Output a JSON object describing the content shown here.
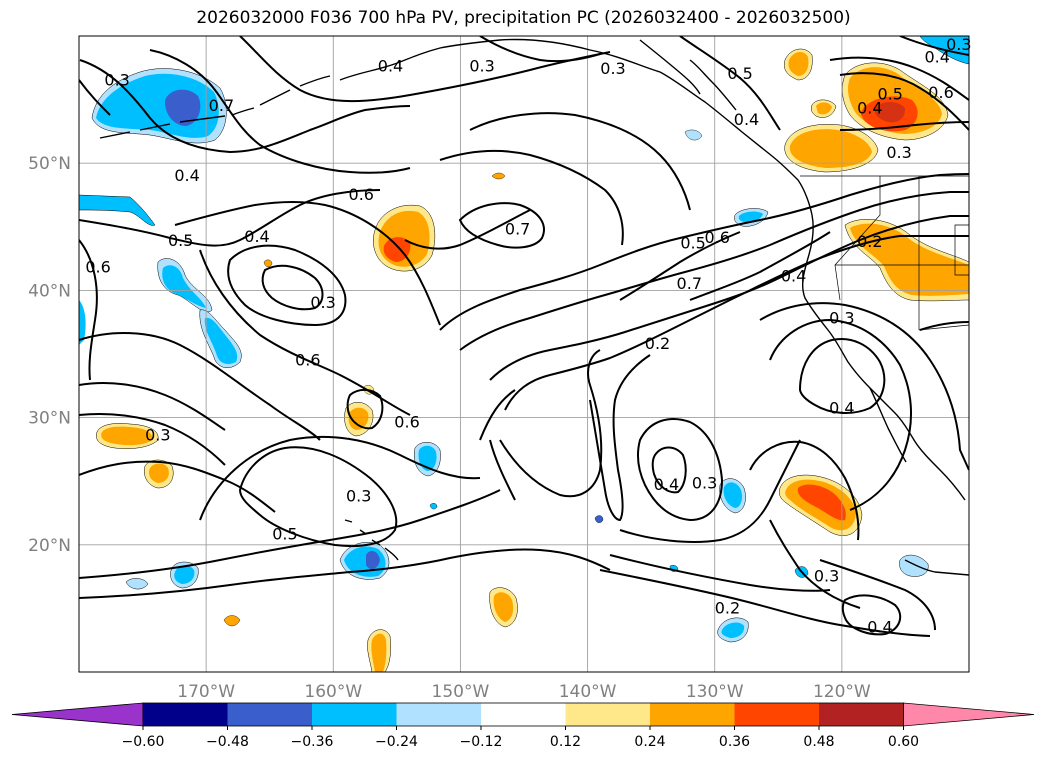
{
  "title": "2026032000 F036 700 hPa PV, precipitation PC (2026032400 - 2026032500)",
  "map": {
    "lat_labels": [
      "50°N",
      "40°N",
      "30°N",
      "20°N"
    ],
    "lon_labels": [
      "170°W",
      "160°W",
      "150°W",
      "140°W",
      "130°W",
      "120°W"
    ],
    "extent": {
      "lon_min": -180,
      "lon_max": -110,
      "lat_min": 10,
      "lat_max": 60
    },
    "contour_labels": [
      {
        "text": "0.3",
        "lon": -177.0,
        "lat": 56.5
      },
      {
        "text": "0.4",
        "lon": -171.5,
        "lat": 49.0
      },
      {
        "text": "0.7",
        "lon": -168.8,
        "lat": 54.5
      },
      {
        "text": "0.4",
        "lon": -155.5,
        "lat": 57.6
      },
      {
        "text": "0.3",
        "lon": -148.3,
        "lat": 57.6
      },
      {
        "text": "0.3",
        "lon": -138.0,
        "lat": 57.4
      },
      {
        "text": "0.5",
        "lon": -128.0,
        "lat": 57.0
      },
      {
        "text": "0.4",
        "lon": -127.5,
        "lat": 53.4
      },
      {
        "text": "0.4",
        "lon": -112.5,
        "lat": 58.3
      },
      {
        "text": "0.3",
        "lon": -110.8,
        "lat": 59.3
      },
      {
        "text": "0.5",
        "lon": -116.2,
        "lat": 55.4
      },
      {
        "text": "0.4",
        "lon": -117.8,
        "lat": 54.3
      },
      {
        "text": "0.6",
        "lon": -112.2,
        "lat": 55.5
      },
      {
        "text": "0.3",
        "lon": -115.5,
        "lat": 50.8
      },
      {
        "text": "0.6",
        "lon": -157.8,
        "lat": 47.5
      },
      {
        "text": "0.4",
        "lon": -166.0,
        "lat": 44.2
      },
      {
        "text": "0.5",
        "lon": -172.0,
        "lat": 43.9
      },
      {
        "text": "0.6",
        "lon": -178.5,
        "lat": 41.8
      },
      {
        "text": "0.3",
        "lon": -160.8,
        "lat": 39.0
      },
      {
        "text": "0.6",
        "lon": -162.0,
        "lat": 34.5
      },
      {
        "text": "0.7",
        "lon": -145.5,
        "lat": 44.8
      },
      {
        "text": "0.5",
        "lon": -131.7,
        "lat": 43.7
      },
      {
        "text": "0.6",
        "lon": -129.8,
        "lat": 44.1
      },
      {
        "text": "0.7",
        "lon": -132.0,
        "lat": 40.5
      },
      {
        "text": "0.4",
        "lon": -123.8,
        "lat": 41.1
      },
      {
        "text": "0.2",
        "lon": -117.8,
        "lat": 43.8
      },
      {
        "text": "0.3",
        "lon": -120.0,
        "lat": 37.8
      },
      {
        "text": "0.2",
        "lon": -134.5,
        "lat": 35.8
      },
      {
        "text": "0.4",
        "lon": -120.0,
        "lat": 30.7
      },
      {
        "text": "0.6",
        "lon": -154.2,
        "lat": 29.6
      },
      {
        "text": "0.3",
        "lon": -173.8,
        "lat": 28.6
      },
      {
        "text": "0.3",
        "lon": -158.0,
        "lat": 23.8
      },
      {
        "text": "0.5",
        "lon": -163.8,
        "lat": 20.8
      },
      {
        "text": "0.4",
        "lon": -133.8,
        "lat": 24.7
      },
      {
        "text": "0.3",
        "lon": -130.8,
        "lat": 24.8
      },
      {
        "text": "0.3",
        "lon": -121.2,
        "lat": 17.5
      },
      {
        "text": "0.2",
        "lon": -129.0,
        "lat": 15.0
      },
      {
        "text": "0.4",
        "lon": -117.0,
        "lat": 13.5
      }
    ]
  },
  "colorbar": {
    "tick_labels": [
      "−0.60",
      "−0.48",
      "−0.36",
      "−0.24",
      "−0.12",
      "0.12",
      "0.24",
      "0.36",
      "0.48",
      "0.60"
    ],
    "colors": [
      "#9933cc",
      "#00008b",
      "#3a5fcd",
      "#00bfff",
      "#b0e2ff",
      "#ffffff",
      "#ffe88a",
      "#ffa500",
      "#ff4500",
      "#b22222",
      "#ff88aa"
    ]
  },
  "legend_colors": {
    "blue_light": "#b0e2ff",
    "blue": "#00bfff",
    "blue_dark": "#3a5fcd",
    "yellow": "#ffe88a",
    "orange": "#ffa500",
    "red": "#ff4500"
  }
}
